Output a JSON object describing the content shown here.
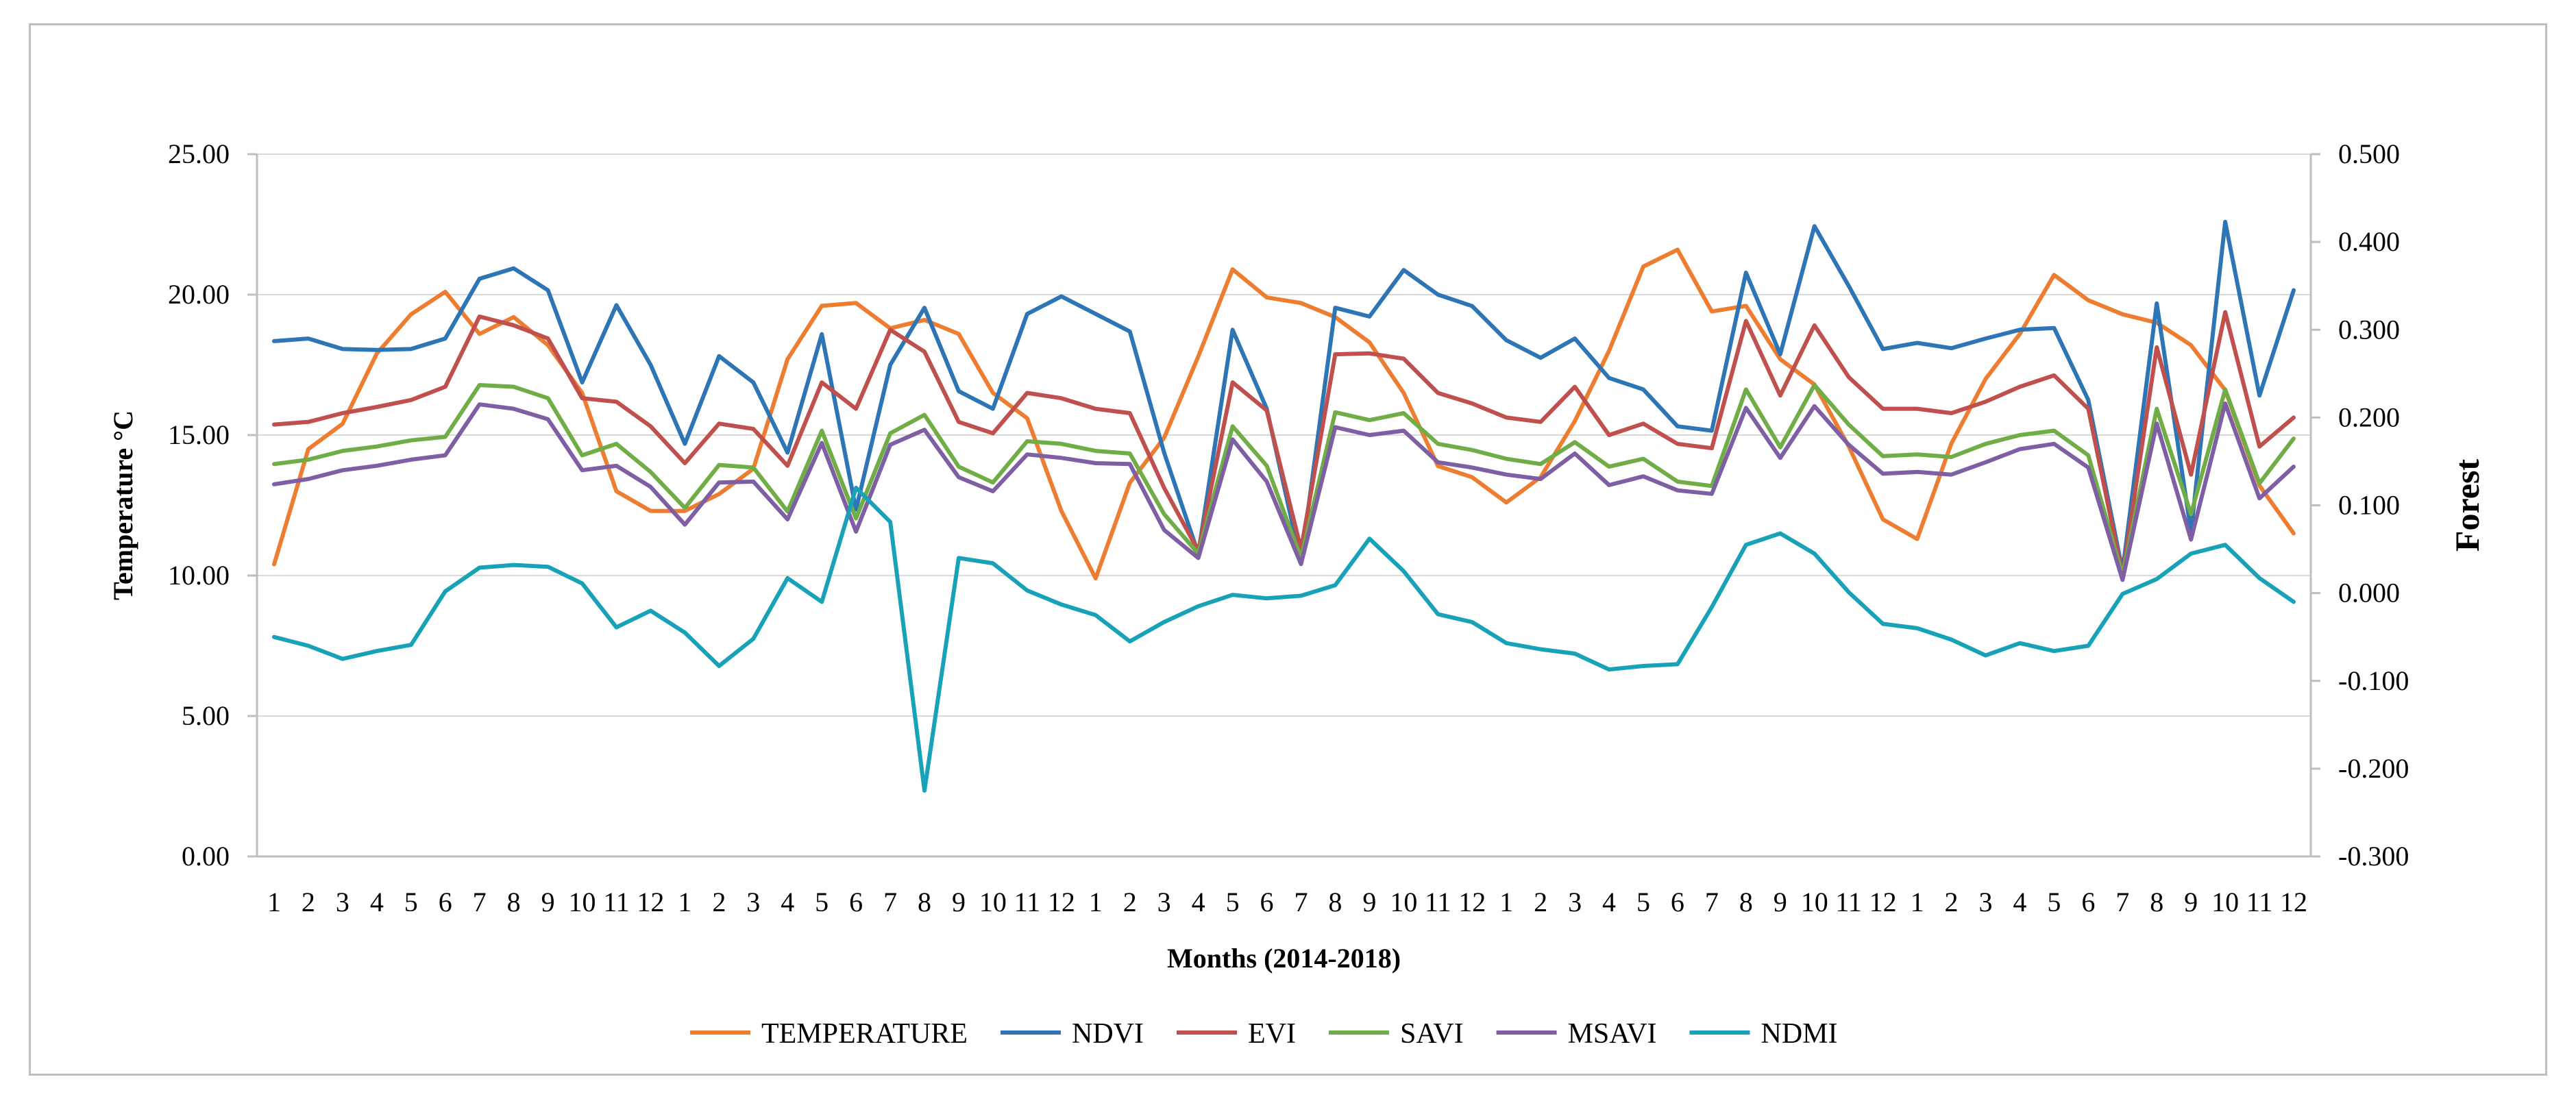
{
  "chart_data": {
    "type": "line",
    "title": "",
    "xlabel": "Months (2014-2018)",
    "ylabel": "Temperature °C",
    "y2label": "Forest",
    "ylim": [
      0,
      25
    ],
    "y2lim": [
      -0.3,
      0.5
    ],
    "yticks": [
      "0.00",
      "5.00",
      "10.00",
      "15.00",
      "20.00",
      "25.00"
    ],
    "y2ticks": [
      "-0.300",
      "-0.200",
      "-0.100",
      "0.000",
      "0.100",
      "0.200",
      "0.300",
      "0.400",
      "0.500"
    ],
    "categories": [
      "1",
      "2",
      "3",
      "4",
      "5",
      "6",
      "7",
      "8",
      "9",
      "10",
      "11",
      "12",
      "1",
      "2",
      "3",
      "4",
      "5",
      "6",
      "7",
      "8",
      "9",
      "10",
      "11",
      "12",
      "1",
      "2",
      "3",
      "4",
      "5",
      "6",
      "7",
      "8",
      "9",
      "10",
      "11",
      "12",
      "1",
      "2",
      "3",
      "4",
      "5",
      "6",
      "7",
      "8",
      "9",
      "10",
      "11",
      "12",
      "1",
      "2",
      "3",
      "4",
      "5",
      "6",
      "7",
      "8",
      "9",
      "10",
      "11",
      "12"
    ],
    "grid": true,
    "legend_position": "bottom",
    "series": [
      {
        "name": "TEMPERATURE",
        "axis": "left",
        "color": "#ED7D31",
        "values": [
          10.4,
          14.5,
          15.4,
          17.9,
          19.3,
          20.1,
          18.6,
          19.2,
          18.2,
          16.5,
          13.0,
          12.3,
          12.3,
          12.9,
          13.8,
          17.7,
          19.6,
          19.7,
          18.8,
          19.1,
          18.6,
          16.5,
          15.6,
          12.3,
          9.9,
          13.3,
          14.9,
          17.8,
          20.9,
          19.9,
          19.7,
          19.2,
          18.3,
          16.5,
          13.9,
          13.5,
          12.6,
          13.5,
          15.5,
          18.0,
          21.0,
          21.6,
          19.4,
          19.6,
          17.7,
          16.8,
          14.6,
          12.0,
          11.3,
          14.7,
          17.0,
          18.6,
          20.7,
          19.8,
          19.3,
          19.0,
          18.2,
          16.6,
          13.2,
          11.5
        ]
      },
      {
        "name": "NDVI",
        "axis": "right",
        "color": "#2E75B6",
        "values": [
          0.287,
          0.29,
          0.278,
          0.277,
          0.278,
          0.29,
          0.358,
          0.37,
          0.345,
          0.24,
          0.328,
          0.26,
          0.17,
          0.27,
          0.24,
          0.16,
          0.295,
          0.095,
          0.26,
          0.325,
          0.23,
          0.21,
          0.318,
          0.338,
          0.318,
          0.298,
          0.16,
          0.045,
          0.3,
          0.21,
          0.035,
          0.325,
          0.315,
          0.368,
          0.34,
          0.327,
          0.288,
          0.268,
          0.29,
          0.245,
          0.232,
          0.19,
          0.185,
          0.365,
          0.272,
          0.418,
          0.35,
          0.278,
          0.285,
          0.279,
          0.29,
          0.3,
          0.302,
          0.22,
          0.025,
          0.33,
          0.07,
          0.423,
          0.225,
          0.345
        ]
      },
      {
        "name": "EVI",
        "axis": "right",
        "color": "#C0504D",
        "values": [
          0.192,
          0.195,
          0.205,
          0.212,
          0.22,
          0.235,
          0.315,
          0.305,
          0.29,
          0.222,
          0.218,
          0.19,
          0.148,
          0.193,
          0.187,
          0.145,
          0.24,
          0.21,
          0.3,
          0.275,
          0.195,
          0.182,
          0.228,
          0.222,
          0.21,
          0.205,
          0.12,
          0.048,
          0.24,
          0.208,
          0.05,
          0.272,
          0.273,
          0.267,
          0.228,
          0.216,
          0.2,
          0.195,
          0.235,
          0.18,
          0.193,
          0.17,
          0.165,
          0.31,
          0.225,
          0.305,
          0.246,
          0.21,
          0.21,
          0.205,
          0.218,
          0.235,
          0.248,
          0.21,
          0.02,
          0.28,
          0.135,
          0.32,
          0.167,
          0.2
        ]
      },
      {
        "name": "SAVI",
        "axis": "right",
        "color": "#70AD47",
        "values": [
          0.147,
          0.152,
          0.162,
          0.167,
          0.174,
          0.178,
          0.237,
          0.235,
          0.222,
          0.157,
          0.17,
          0.138,
          0.097,
          0.146,
          0.143,
          0.093,
          0.185,
          0.085,
          0.182,
          0.203,
          0.144,
          0.126,
          0.173,
          0.17,
          0.162,
          0.159,
          0.09,
          0.045,
          0.19,
          0.145,
          0.04,
          0.206,
          0.197,
          0.205,
          0.17,
          0.163,
          0.153,
          0.147,
          0.172,
          0.144,
          0.153,
          0.127,
          0.122,
          0.232,
          0.166,
          0.237,
          0.192,
          0.156,
          0.158,
          0.155,
          0.17,
          0.18,
          0.185,
          0.157,
          0.02,
          0.21,
          0.09,
          0.232,
          0.125,
          0.176
        ]
      },
      {
        "name": "MSAVI",
        "axis": "right",
        "color": "#7F5FA3",
        "values": [
          0.124,
          0.13,
          0.14,
          0.145,
          0.152,
          0.157,
          0.215,
          0.21,
          0.198,
          0.14,
          0.145,
          0.121,
          0.078,
          0.126,
          0.127,
          0.084,
          0.171,
          0.07,
          0.169,
          0.186,
          0.132,
          0.116,
          0.158,
          0.154,
          0.148,
          0.147,
          0.072,
          0.04,
          0.175,
          0.127,
          0.033,
          0.189,
          0.18,
          0.185,
          0.149,
          0.143,
          0.135,
          0.13,
          0.159,
          0.123,
          0.133,
          0.117,
          0.113,
          0.211,
          0.154,
          0.213,
          0.169,
          0.136,
          0.138,
          0.135,
          0.149,
          0.164,
          0.17,
          0.143,
          0.015,
          0.193,
          0.061,
          0.216,
          0.108,
          0.144
        ]
      },
      {
        "name": "NDMI",
        "axis": "right",
        "color": "#17A2B8",
        "values": [
          -0.05,
          -0.06,
          -0.075,
          -0.066,
          -0.059,
          0.002,
          0.029,
          0.032,
          0.03,
          0.011,
          -0.039,
          -0.02,
          -0.045,
          -0.083,
          -0.052,
          0.017,
          -0.01,
          0.12,
          0.081,
          -0.225,
          0.04,
          0.034,
          0.003,
          -0.013,
          -0.025,
          -0.055,
          -0.033,
          -0.015,
          -0.002,
          -0.006,
          -0.003,
          0.009,
          0.062,
          0.025,
          -0.024,
          -0.033,
          -0.057,
          -0.064,
          -0.069,
          -0.087,
          -0.083,
          -0.081,
          -0.016,
          0.055,
          0.068,
          0.045,
          0.001,
          -0.035,
          -0.04,
          -0.053,
          -0.071,
          -0.057,
          -0.066,
          -0.06,
          -0.001,
          0.016,
          0.045,
          0.055,
          0.017,
          -0.01
        ]
      }
    ]
  }
}
